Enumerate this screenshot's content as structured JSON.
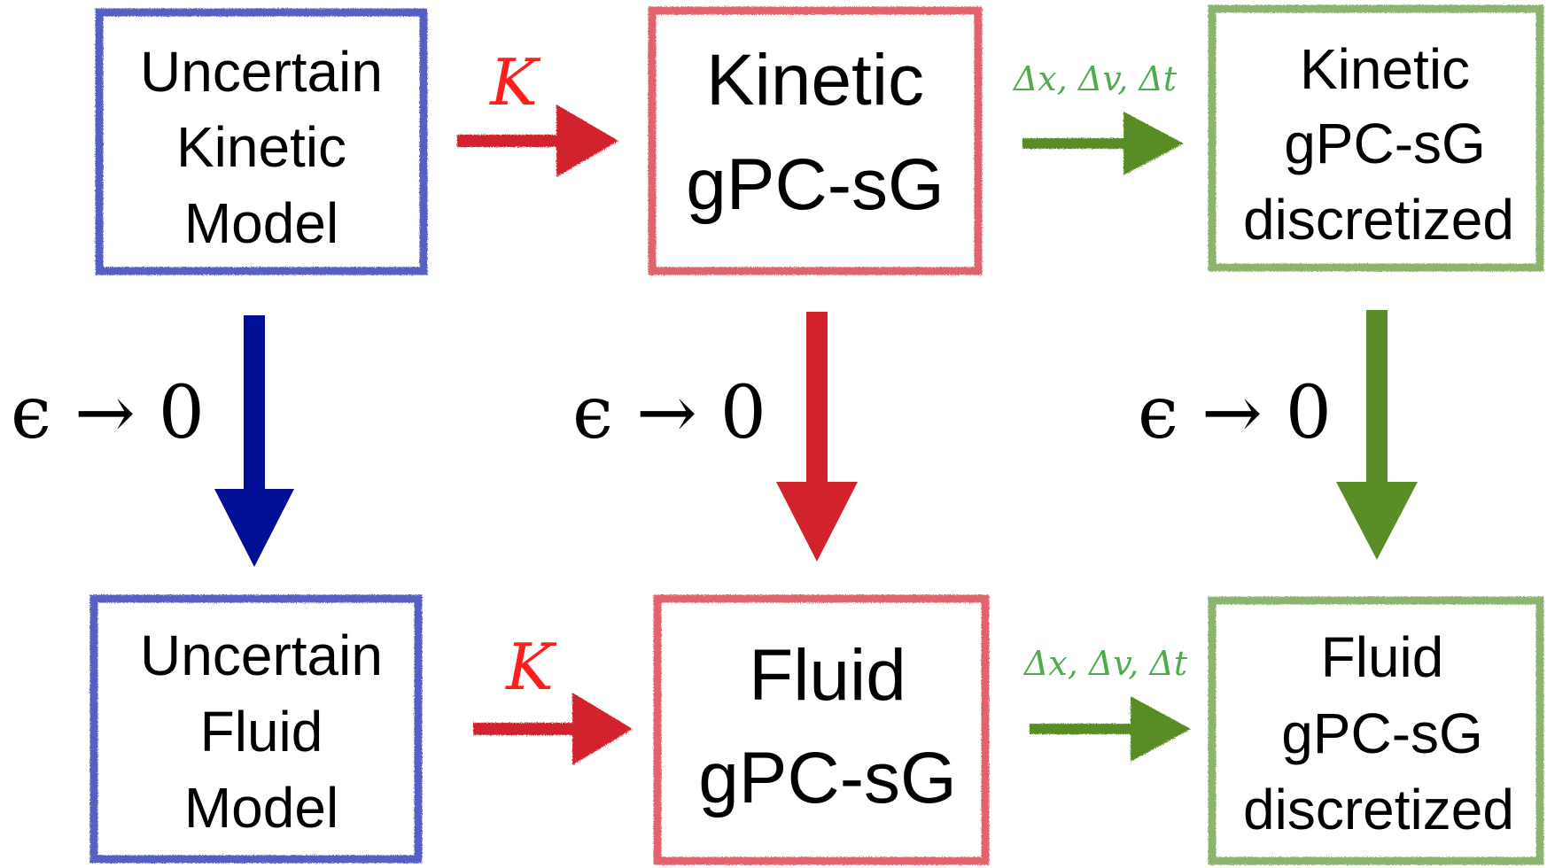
{
  "colors": {
    "blue_border": "#5660c4",
    "blue_arrow": "#000f96",
    "red_border": "#e0646e",
    "red_arrow": "#d2232d",
    "green_border": "#8cb46e",
    "green_arrow": "#5a8c28",
    "red_label": "#ff1e1e",
    "green_label": "#50aa50"
  },
  "boxes": {
    "uncertain_kinetic": {
      "lines": [
        "Uncertain",
        "Kinetic",
        "Model"
      ]
    },
    "kinetic_gpc": {
      "lines": [
        "Kinetic",
        "gPC-sG"
      ]
    },
    "kinetic_discretized": {
      "lines": [
        "Kinetic",
        "gPC-sG",
        "discretized"
      ]
    },
    "uncertain_fluid": {
      "lines": [
        "Uncertain",
        "Fluid",
        "Model"
      ]
    },
    "fluid_gpc": {
      "lines": [
        "Fluid",
        "gPC-sG"
      ]
    },
    "fluid_discretized": {
      "lines": [
        "Fluid",
        "gPC-sG",
        "discretized"
      ]
    }
  },
  "labels": {
    "k_top": "K",
    "k_bottom": "K",
    "disc_top": "Δx, Δv, Δt",
    "disc_bottom": "Δx, Δv, Δt",
    "limit_left": "ϵ → 0",
    "limit_mid": "ϵ → 0",
    "limit_right": "ϵ → 0"
  }
}
